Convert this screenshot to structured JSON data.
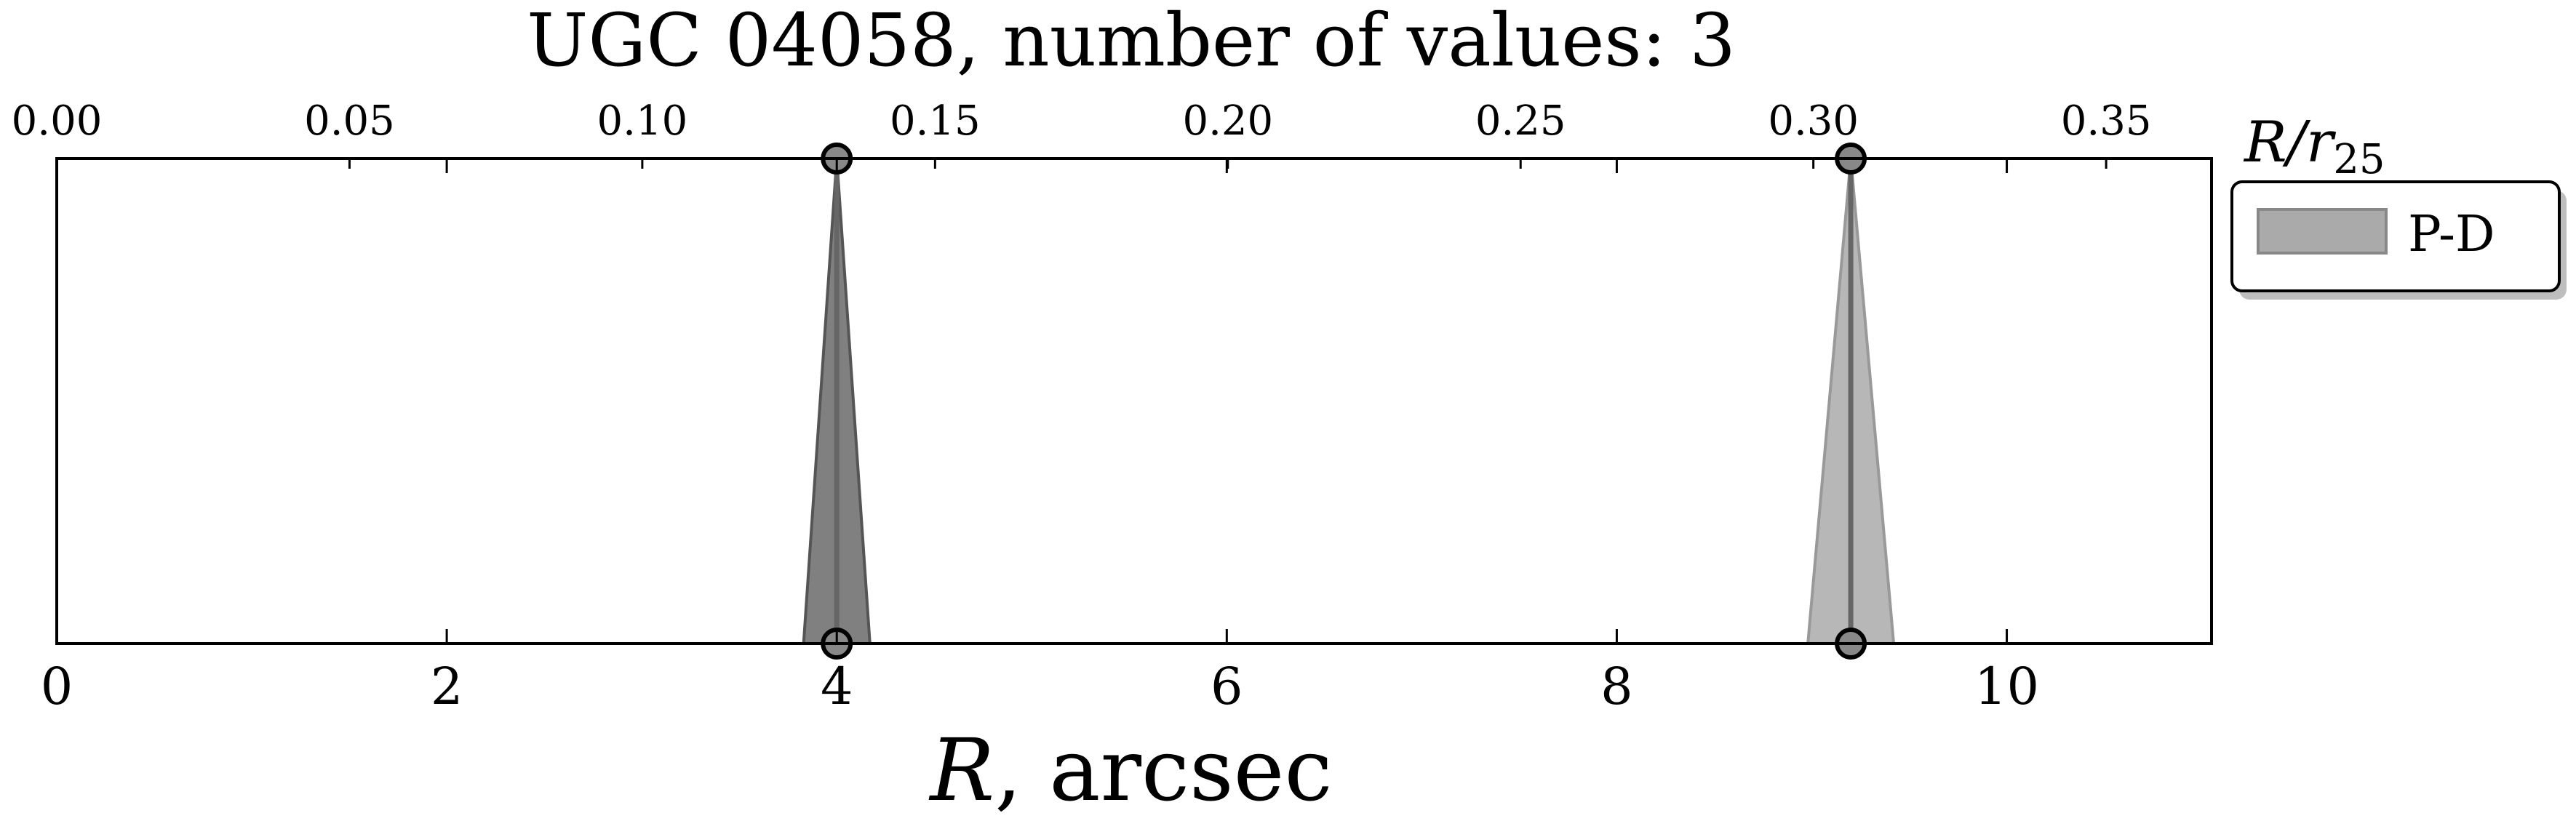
{
  "chart_data": {
    "type": "area",
    "title": "UGC 04058, number of values: 3",
    "xlabel_italic": "R",
    "xlabel_rest": ", arcsec",
    "x2label_main": "R/r",
    "x2label_sub": "25",
    "xlim": [
      0,
      11.05
    ],
    "x2lim": [
      0,
      0.368
    ],
    "ylim": [
      0,
      1
    ],
    "grid": false,
    "legend_position": "top-right-outside",
    "x_ticks": [
      0,
      2,
      4,
      6,
      8,
      10
    ],
    "x_tick_labels": [
      "0",
      "2",
      "4",
      "6",
      "8",
      "10"
    ],
    "x2_ticks": [
      0.0,
      0.05,
      0.1,
      0.15,
      0.2,
      0.25,
      0.3,
      0.35
    ],
    "x2_tick_labels": [
      "0.00",
      "0.05",
      "0.10",
      "0.15",
      "0.20",
      "0.25",
      "0.30",
      "0.35"
    ],
    "series": [
      {
        "name": "P-D",
        "spikes": [
          {
            "x": 4.0,
            "half_width": 0.17,
            "fill": "#555555",
            "fill_opacity": 0.75
          },
          {
            "x": 9.2,
            "half_width": 0.22,
            "fill": "#999999",
            "fill_opacity": 0.7
          }
        ],
        "points": [
          {
            "x": 4.0,
            "y": 1
          },
          {
            "x": 4.0,
            "y": 0
          },
          {
            "x": 9.2,
            "y": 1
          },
          {
            "x": 9.2,
            "y": 0
          }
        ]
      }
    ],
    "legend": {
      "label": "P-D",
      "swatch_color": "#aaaaaa"
    }
  }
}
